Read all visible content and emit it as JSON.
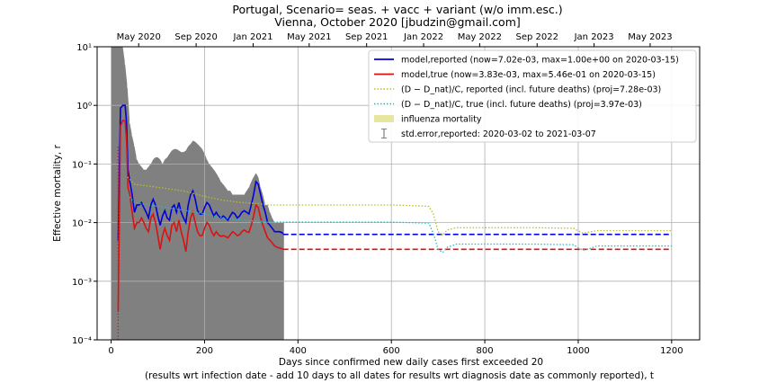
{
  "chart_data": {
    "type": "line",
    "title_line1": "Portugal, Scenario= seas. + vacc + variant (w/o imm.esc.)",
    "title_line2": "Vienna, October 2020 [jbudzin@gmail.com]",
    "xlabel_line1": "Days since confirmed new daily cases first exceeded 20",
    "xlabel_line2": "(results wrt infection date - add 10 days to all dates for results wrt diagnosis date as commonly reported), t",
    "ylabel": "Effective mortality, r",
    "xlim": [
      -30,
      1260
    ],
    "ylim": [
      0.0001,
      10
    ],
    "yscale": "log",
    "grid": true,
    "x_ticks": [
      0,
      200,
      400,
      600,
      800,
      1000,
      1200
    ],
    "x_tick_labels": [
      "0",
      "200",
      "400",
      "600",
      "800",
      "1000",
      "1200"
    ],
    "y_ticks": [
      0.0001,
      0.001,
      0.01,
      0.1,
      1,
      10
    ],
    "y_tick_labels": [
      "10⁻⁴",
      "10⁻³",
      "10⁻²",
      "10⁻¹",
      "10⁰",
      "10¹"
    ],
    "top_axis_ticks": [
      {
        "x": 59,
        "label": "May 2020"
      },
      {
        "x": 182,
        "label": "Sep 2020"
      },
      {
        "x": 304,
        "label": "Jan 2021"
      },
      {
        "x": 424,
        "label": "May 2021"
      },
      {
        "x": 547,
        "label": "Sep 2021"
      },
      {
        "x": 669,
        "label": "Jan 2022"
      },
      {
        "x": 789,
        "label": "May 2022"
      },
      {
        "x": 912,
        "label": "Sep 2022"
      },
      {
        "x": 1034,
        "label": "Jan 2023"
      },
      {
        "x": 1154,
        "label": "May 2023"
      }
    ],
    "legend_position": "upper right",
    "legend": [
      {
        "label": "model,reported (now=7.02e-03, max=1.00e+00 on 2020-03-15)",
        "color": "#0000dd",
        "style": "solid"
      },
      {
        "label": "model,true (now=3.83e-03, max=5.46e-01 on 2020-03-15)",
        "color": "#dd1111",
        "style": "solid"
      },
      {
        "label": "(D − D_nat)/C, reported (incl. future deaths) (proj=7.28e-03)",
        "color": "#bcbd22",
        "style": "dotted"
      },
      {
        "label": "(D − D_nat)/C, true (incl. future deaths) (proj=3.97e-03)",
        "color": "#17becf",
        "style": "dotted"
      },
      {
        "label": "influenza mortality",
        "color": "#e6e6a0",
        "style": "band"
      },
      {
        "label": "std.error,reported: 2020-03-02 to 2021-03-07",
        "color": "#808080",
        "style": "errorbar"
      }
    ],
    "influenza_band": [
      0.001,
      0.002
    ],
    "series": [
      {
        "name": "model,reported",
        "color": "#0000dd",
        "x": [
          15,
          20,
          25,
          30,
          33,
          36,
          40,
          45,
          50,
          55,
          60,
          65,
          70,
          75,
          80,
          85,
          90,
          95,
          100,
          105,
          110,
          115,
          120,
          125,
          130,
          135,
          140,
          145,
          150,
          155,
          160,
          165,
          170,
          175,
          180,
          185,
          190,
          195,
          200,
          205,
          210,
          215,
          220,
          225,
          230,
          235,
          240,
          245,
          250,
          255,
          260,
          265,
          270,
          275,
          280,
          285,
          290,
          295,
          300,
          305,
          310,
          315,
          320,
          325,
          330,
          335,
          340,
          345,
          350,
          355,
          360,
          365,
          368
        ],
        "y": [
          0.005,
          0.9,
          1.0,
          1.0,
          0.5,
          0.08,
          0.05,
          0.03,
          0.015,
          0.02,
          0.02,
          0.022,
          0.018,
          0.015,
          0.012,
          0.02,
          0.025,
          0.02,
          0.013,
          0.009,
          0.013,
          0.016,
          0.012,
          0.011,
          0.018,
          0.02,
          0.015,
          0.022,
          0.015,
          0.012,
          0.01,
          0.02,
          0.03,
          0.035,
          0.025,
          0.016,
          0.014,
          0.014,
          0.018,
          0.022,
          0.02,
          0.016,
          0.013,
          0.015,
          0.013,
          0.012,
          0.013,
          0.012,
          0.011,
          0.013,
          0.015,
          0.014,
          0.012,
          0.013,
          0.015,
          0.016,
          0.015,
          0.014,
          0.02,
          0.03,
          0.05,
          0.045,
          0.03,
          0.02,
          0.015,
          0.01,
          0.009,
          0.008,
          0.007,
          0.007,
          0.007,
          0.0068,
          0.0065
        ]
      },
      {
        "name": "model,reported (projection)",
        "color": "#0000dd",
        "dashed": true,
        "x": [
          368,
          1200
        ],
        "y": [
          0.0063,
          0.0063
        ]
      },
      {
        "name": "model,true",
        "color": "#dd1111",
        "x": [
          15,
          20,
          25,
          30,
          33,
          36,
          40,
          45,
          50,
          55,
          60,
          65,
          70,
          75,
          80,
          85,
          90,
          95,
          100,
          105,
          110,
          115,
          120,
          125,
          130,
          135,
          140,
          145,
          150,
          155,
          160,
          165,
          170,
          175,
          180,
          185,
          190,
          195,
          200,
          205,
          210,
          215,
          220,
          225,
          230,
          235,
          240,
          245,
          250,
          255,
          260,
          265,
          270,
          275,
          280,
          285,
          290,
          295,
          300,
          305,
          310,
          315,
          320,
          325,
          330,
          335,
          340,
          345,
          350,
          355,
          360,
          365,
          368
        ],
        "y": [
          0.0003,
          0.45,
          0.55,
          0.546,
          0.25,
          0.04,
          0.03,
          0.015,
          0.008,
          0.01,
          0.01,
          0.012,
          0.01,
          0.008,
          0.007,
          0.012,
          0.014,
          0.01,
          0.006,
          0.0035,
          0.006,
          0.008,
          0.006,
          0.005,
          0.009,
          0.01,
          0.007,
          0.011,
          0.007,
          0.005,
          0.0032,
          0.007,
          0.012,
          0.015,
          0.01,
          0.007,
          0.006,
          0.006,
          0.008,
          0.01,
          0.009,
          0.007,
          0.006,
          0.007,
          0.0062,
          0.0058,
          0.006,
          0.0058,
          0.0055,
          0.0062,
          0.007,
          0.0066,
          0.006,
          0.0062,
          0.007,
          0.0075,
          0.007,
          0.0068,
          0.009,
          0.013,
          0.02,
          0.018,
          0.012,
          0.009,
          0.007,
          0.0055,
          0.005,
          0.0045,
          0.004,
          0.0038,
          0.0037,
          0.0036,
          0.0035
        ]
      },
      {
        "name": "model,true (projection)",
        "color": "#dd1111",
        "dashed": true,
        "x": [
          368,
          1200
        ],
        "y": [
          0.0035,
          0.0035
        ]
      },
      {
        "name": "(D − D_nat)/C, reported (incl. future deaths)",
        "color": "#bcbd22",
        "dotted": true,
        "x": [
          35,
          50,
          80,
          120,
          160,
          200,
          240,
          280,
          320,
          330,
          360,
          400,
          500,
          600,
          680,
          690,
          700,
          710,
          720,
          740,
          800,
          900,
          990,
          1000,
          1010,
          1020,
          1040,
          1100,
          1200
        ],
        "y": [
          0.06,
          0.045,
          0.042,
          0.038,
          0.034,
          0.028,
          0.024,
          0.022,
          0.021,
          0.02,
          0.02,
          0.02,
          0.02,
          0.02,
          0.019,
          0.014,
          0.007,
          0.0062,
          0.0075,
          0.0082,
          0.0082,
          0.0082,
          0.008,
          0.0072,
          0.0066,
          0.0068,
          0.0073,
          0.0073,
          0.0073
        ]
      },
      {
        "name": "(D − D_nat)/C, true (incl. future deaths)",
        "color": "#17becf",
        "dotted": true,
        "x": [
          35,
          50,
          80,
          120,
          160,
          200,
          240,
          280,
          320,
          330,
          360,
          400,
          500,
          600,
          680,
          690,
          700,
          710,
          720,
          740,
          800,
          900,
          990,
          1000,
          1010,
          1020,
          1040,
          1100,
          1200
        ],
        "y": [
          0.03,
          0.022,
          0.02,
          0.018,
          0.016,
          0.014,
          0.012,
          0.011,
          0.0105,
          0.0102,
          0.0102,
          0.0102,
          0.0102,
          0.0102,
          0.0098,
          0.0065,
          0.0035,
          0.0031,
          0.0038,
          0.0043,
          0.0043,
          0.0043,
          0.0042,
          0.0037,
          0.0034,
          0.0035,
          0.004,
          0.004,
          0.004
        ]
      }
    ],
    "stderr_band": {
      "name": "std.error,reported",
      "color": "#808080",
      "x": [
        0,
        5,
        10,
        15,
        20,
        25,
        30,
        35,
        40,
        45,
        50,
        55,
        60,
        65,
        70,
        75,
        80,
        85,
        90,
        95,
        100,
        105,
        110,
        115,
        120,
        125,
        130,
        135,
        140,
        145,
        150,
        155,
        160,
        165,
        170,
        175,
        180,
        185,
        190,
        195,
        200,
        205,
        210,
        215,
        220,
        225,
        230,
        235,
        240,
        245,
        250,
        255,
        260,
        265,
        270,
        275,
        280,
        285,
        290,
        295,
        300,
        305,
        310,
        315,
        320,
        325,
        330,
        335,
        340,
        345,
        350,
        355,
        360,
        365,
        370
      ],
      "upper": [
        10,
        10,
        10,
        10,
        10,
        10,
        5,
        2,
        0.5,
        0.3,
        0.2,
        0.12,
        0.1,
        0.09,
        0.08,
        0.08,
        0.09,
        0.1,
        0.12,
        0.13,
        0.13,
        0.12,
        0.1,
        0.12,
        0.13,
        0.15,
        0.17,
        0.18,
        0.18,
        0.17,
        0.16,
        0.16,
        0.17,
        0.2,
        0.22,
        0.25,
        0.24,
        0.22,
        0.2,
        0.18,
        0.15,
        0.12,
        0.1,
        0.09,
        0.08,
        0.07,
        0.06,
        0.05,
        0.045,
        0.04,
        0.035,
        0.035,
        0.03,
        0.03,
        0.03,
        0.03,
        0.03,
        0.03,
        0.035,
        0.04,
        0.05,
        0.06,
        0.07,
        0.06,
        0.04,
        0.03,
        0.02,
        0.02,
        0.015,
        0.012,
        0.01,
        0.01,
        0.01,
        0.01,
        0.01
      ],
      "lower": [
        0.0001,
        0.0001,
        0.0001,
        0.0001,
        0.0001,
        0.0001,
        0.0001,
        0.0001,
        0.0001,
        0.0001,
        0.0001,
        0.0001,
        0.0001,
        0.0001,
        0.0001,
        0.0001,
        0.0001,
        0.0001,
        0.0001,
        0.0001,
        0.0001,
        0.0001,
        0.0001,
        0.0001,
        0.0001,
        0.0001,
        0.0001,
        0.0001,
        0.0001,
        0.0001,
        0.0001,
        0.0001,
        0.0001,
        0.0001,
        0.0001,
        0.0001,
        0.0001,
        0.0001,
        0.0001,
        0.0001,
        0.0001,
        0.0001,
        0.0001,
        0.0001,
        0.0001,
        0.0001,
        0.0001,
        0.0001,
        0.0001,
        0.0001,
        0.0001,
        0.0001,
        0.0001,
        0.0001,
        0.0001,
        0.0001,
        0.0001,
        0.0001,
        0.0001,
        0.0001,
        0.0001,
        0.0001,
        0.0001,
        0.0001,
        0.0001,
        0.0001,
        0.0001,
        0.0001,
        0.0001,
        0.0001,
        0.0001,
        0.0001,
        0.0001,
        0.0001,
        0.0001
      ]
    }
  }
}
